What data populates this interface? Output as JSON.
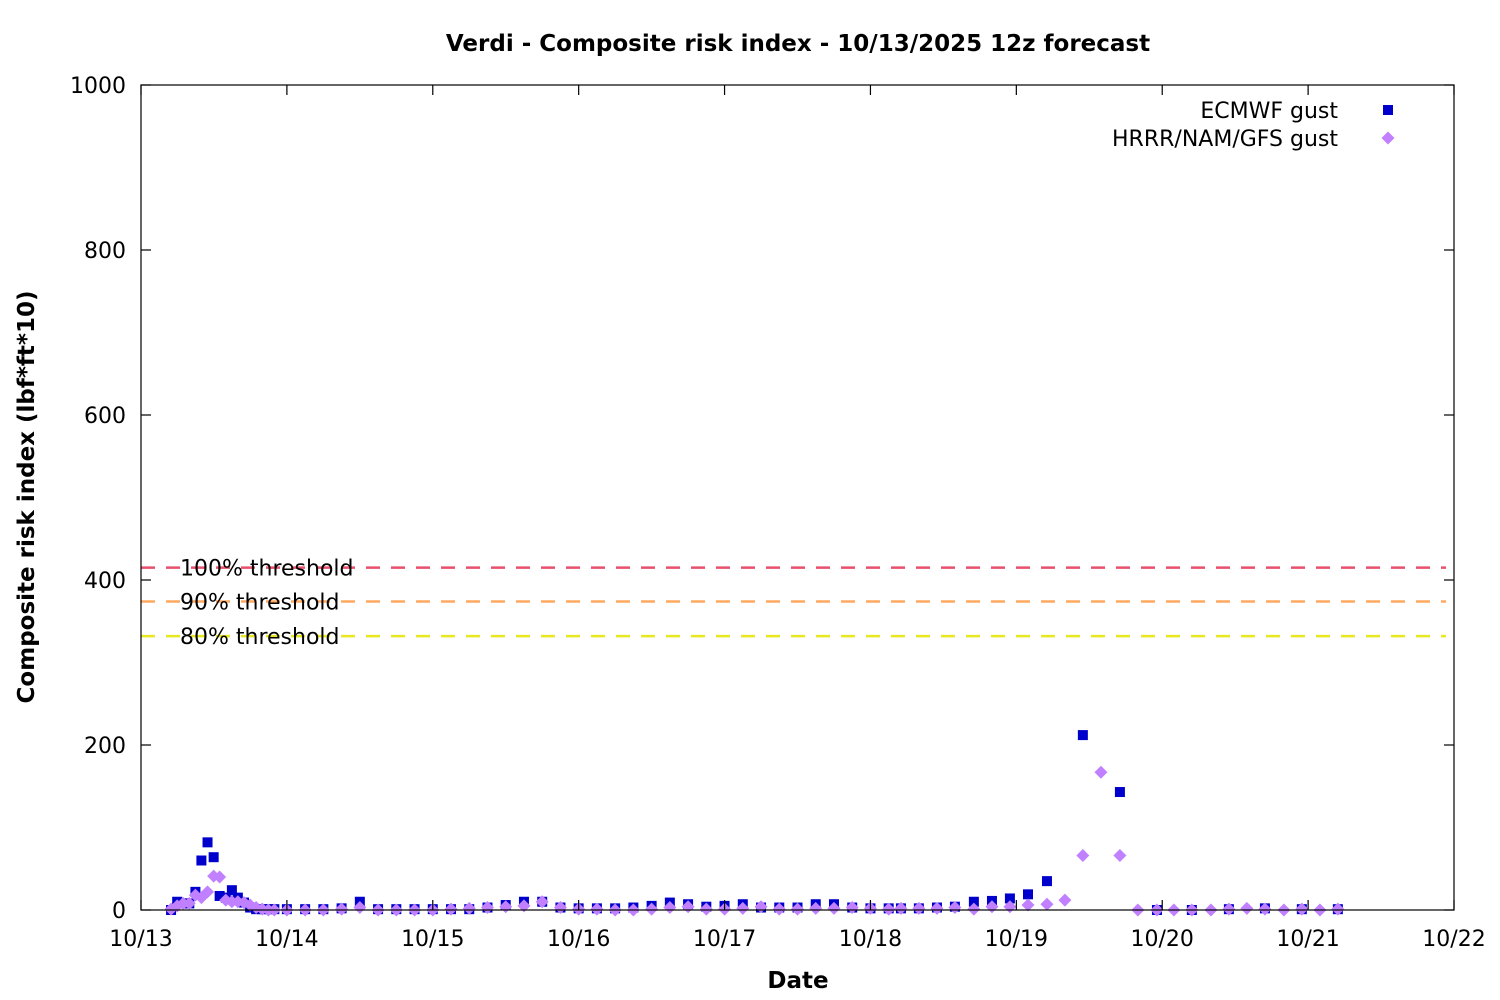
{
  "chart_data": {
    "type": "scatter",
    "title": "Verdi - Composite risk index - 10/13/2025 12z forecast",
    "xlabel": "Date",
    "ylabel": "Composite risk index (lbf*ft*10)",
    "xlim": [
      0,
      9
    ],
    "ylim": [
      0,
      1000
    ],
    "x_unit": "days since 10/13 00z",
    "x_ticks": [
      "10/13",
      "10/14",
      "10/15",
      "10/16",
      "10/17",
      "10/18",
      "10/19",
      "10/20",
      "10/21",
      "10/22"
    ],
    "y_ticks": [
      0,
      200,
      400,
      600,
      800,
      1000
    ],
    "legend_position": "top-right",
    "thresholds": [
      {
        "label": "100% threshold",
        "value": 415,
        "color": "#e8506e"
      },
      {
        "label": "90% threshold",
        "value": 374,
        "color": "#ffa860"
      },
      {
        "label": "80% threshold",
        "value": 332,
        "color": "#e8e820"
      }
    ],
    "series": [
      {
        "name": "ECMWF gust",
        "marker": "square",
        "color": "#0000cc",
        "points": [
          [
            0.206,
            0
          ],
          [
            0.248,
            10
          ],
          [
            0.289,
            8
          ],
          [
            0.331,
            8
          ],
          [
            0.373,
            22
          ],
          [
            0.414,
            60
          ],
          [
            0.456,
            82
          ],
          [
            0.498,
            64
          ],
          [
            0.539,
            17
          ],
          [
            0.581,
            15
          ],
          [
            0.623,
            24
          ],
          [
            0.664,
            15
          ],
          [
            0.706,
            9
          ],
          [
            0.748,
            3
          ],
          [
            0.789,
            1
          ],
          [
            0.831,
            1
          ],
          [
            0.873,
            1
          ],
          [
            0.914,
            1
          ],
          [
            1.0,
            1
          ],
          [
            1.125,
            1
          ],
          [
            1.25,
            1
          ],
          [
            1.375,
            2
          ],
          [
            1.5,
            10
          ],
          [
            1.625,
            1
          ],
          [
            1.75,
            1
          ],
          [
            1.875,
            1
          ],
          [
            2.0,
            1
          ],
          [
            2.125,
            1
          ],
          [
            2.25,
            1
          ],
          [
            2.375,
            3
          ],
          [
            2.5,
            6
          ],
          [
            2.625,
            10
          ],
          [
            2.75,
            10
          ],
          [
            2.875,
            3
          ],
          [
            3.0,
            2
          ],
          [
            3.125,
            2
          ],
          [
            3.25,
            2
          ],
          [
            3.375,
            3
          ],
          [
            3.5,
            5
          ],
          [
            3.625,
            9
          ],
          [
            3.75,
            7
          ],
          [
            3.875,
            4
          ],
          [
            4.0,
            5
          ],
          [
            4.125,
            7
          ],
          [
            4.25,
            3
          ],
          [
            4.375,
            3
          ],
          [
            4.5,
            3
          ],
          [
            4.625,
            7
          ],
          [
            4.75,
            7
          ],
          [
            4.875,
            3
          ],
          [
            5.0,
            2
          ],
          [
            5.125,
            2
          ],
          [
            5.209,
            2
          ],
          [
            5.332,
            2
          ],
          [
            5.456,
            3
          ],
          [
            5.579,
            4
          ],
          [
            5.709,
            10
          ],
          [
            5.833,
            11
          ],
          [
            5.956,
            14
          ],
          [
            6.08,
            19
          ],
          [
            6.21,
            35
          ],
          [
            6.456,
            212
          ],
          [
            6.71,
            143
          ],
          [
            6.964,
            0
          ],
          [
            7.203,
            0
          ],
          [
            7.457,
            1
          ],
          [
            7.704,
            2
          ],
          [
            7.957,
            1
          ],
          [
            8.204,
            1
          ]
        ]
      },
      {
        "name": "HRRR/NAM/GFS gust",
        "marker": "diamond",
        "color": "#c080ff",
        "points": [
          [
            0.206,
            1
          ],
          [
            0.248,
            5
          ],
          [
            0.289,
            8
          ],
          [
            0.331,
            8
          ],
          [
            0.373,
            18
          ],
          [
            0.414,
            15
          ],
          [
            0.456,
            22
          ],
          [
            0.498,
            41
          ],
          [
            0.539,
            40
          ],
          [
            0.581,
            12
          ],
          [
            0.623,
            10
          ],
          [
            0.664,
            10
          ],
          [
            0.706,
            9
          ],
          [
            0.748,
            6
          ],
          [
            0.789,
            3
          ],
          [
            0.831,
            1
          ],
          [
            0.873,
            0
          ],
          [
            0.914,
            0
          ],
          [
            1.0,
            0
          ],
          [
            1.125,
            0
          ],
          [
            1.25,
            0
          ],
          [
            1.375,
            1
          ],
          [
            1.5,
            3
          ],
          [
            1.625,
            0
          ],
          [
            1.75,
            0
          ],
          [
            1.875,
            0
          ],
          [
            2.0,
            0
          ],
          [
            2.125,
            1
          ],
          [
            2.25,
            2
          ],
          [
            2.375,
            3
          ],
          [
            2.5,
            4
          ],
          [
            2.625,
            5
          ],
          [
            2.75,
            10
          ],
          [
            2.875,
            3
          ],
          [
            3.0,
            1
          ],
          [
            3.125,
            1
          ],
          [
            3.25,
            0
          ],
          [
            3.375,
            0
          ],
          [
            3.5,
            1
          ],
          [
            3.625,
            3
          ],
          [
            3.75,
            4
          ],
          [
            3.875,
            1
          ],
          [
            4.0,
            1
          ],
          [
            4.125,
            2
          ],
          [
            4.25,
            4
          ],
          [
            4.375,
            1
          ],
          [
            4.5,
            1
          ],
          [
            4.625,
            2
          ],
          [
            4.75,
            2
          ],
          [
            4.875,
            3
          ],
          [
            5.0,
            2
          ],
          [
            5.125,
            1
          ],
          [
            5.209,
            2
          ],
          [
            5.332,
            2
          ],
          [
            5.456,
            2
          ],
          [
            5.579,
            3
          ],
          [
            5.709,
            1
          ],
          [
            5.833,
            4
          ],
          [
            5.956,
            4
          ],
          [
            6.08,
            6
          ],
          [
            6.21,
            7
          ],
          [
            6.333,
            12
          ],
          [
            6.456,
            66
          ],
          [
            6.58,
            167
          ],
          [
            6.71,
            66
          ],
          [
            6.833,
            0
          ],
          [
            6.964,
            0
          ],
          [
            7.08,
            0
          ],
          [
            7.203,
            0
          ],
          [
            7.334,
            0
          ],
          [
            7.457,
            1
          ],
          [
            7.58,
            2
          ],
          [
            7.704,
            1
          ],
          [
            7.834,
            0
          ],
          [
            7.957,
            1
          ],
          [
            8.081,
            0
          ],
          [
            8.204,
            1
          ]
        ]
      }
    ]
  }
}
